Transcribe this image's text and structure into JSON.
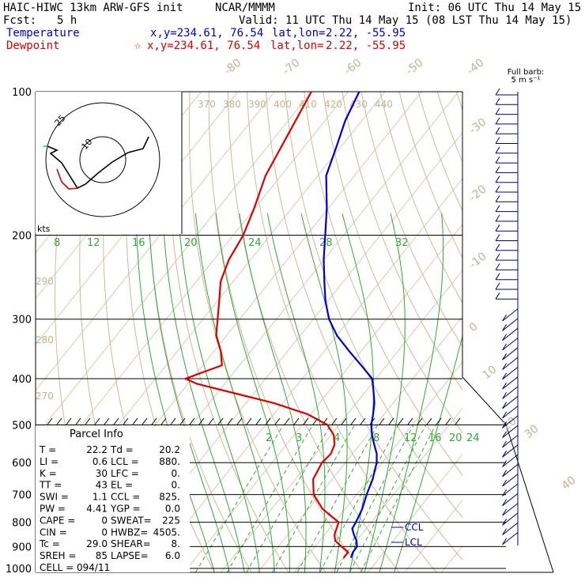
{
  "header": {
    "model": "HAIC-HIWC 13km ARW-GFS init",
    "org": "NCAR/MMMM",
    "init": "Init: 06 UTC Thu 14 May 15",
    "fcst_label": "Fcst:",
    "fcst_value": "5 h",
    "valid": "Valid: 11 UTC Thu 14 May 15 (08 LST Thu 14 May 15)",
    "temperature": {
      "label": "Temperature",
      "xy": "x,y=234.61, 76.54",
      "latlon_label": "lat,lon=",
      "latlon_value": "2.22, -55.95",
      "color": "#0000cc"
    },
    "dewpoint": {
      "label": "Dewpoint",
      "xy": "x,y=234.61, 76.54",
      "latlon_label": "lat,lon=",
      "latlon_value": "2.22, -55.95",
      "color": "#dd0000"
    }
  },
  "barb_key": {
    "line1": "Full barb:",
    "line2": "5 m s⁻¹"
  },
  "hodograph": {
    "units": "kts",
    "ring_labels": [
      "25",
      "10"
    ]
  },
  "parcel_info": {
    "title": "Parcel Info",
    "rows": [
      [
        "T  =",
        "22.2",
        "Td =",
        "20.2"
      ],
      [
        "LI =",
        "0.6",
        "LCL =",
        "880."
      ],
      [
        "K  =",
        "30",
        "LFC =",
        "0."
      ],
      [
        "TT =",
        "43",
        "EL  =",
        "0."
      ],
      [
        "SWI =",
        "1.1",
        "CCL =",
        "825."
      ],
      [
        "PW =",
        "4.41",
        "YGP =",
        "0.0"
      ],
      [
        "CAPE =",
        "0",
        "SWEAT=",
        "225"
      ],
      [
        "CIN =",
        "0",
        "HWBZ=",
        "4505."
      ],
      [
        "Tc =",
        "29.0",
        "SHEAR=",
        "8."
      ],
      [
        "SREH =",
        "85",
        "LAPSE=",
        "6.0"
      ]
    ],
    "cell": "CELL = 094/11"
  },
  "markers": {
    "ccl": "CCL",
    "lcl": "LCL"
  },
  "chart_data": {
    "type": "line",
    "title": "HAIC-HIWC 13km ARW-GFS init",
    "ylabel": "",
    "xlabel": "",
    "pressure_ticks": [
      100,
      200,
      300,
      400,
      500,
      600,
      700,
      800,
      900,
      1000
    ],
    "isotherm_labels": [
      "-80",
      "-70",
      "-60",
      "-50",
      "-40",
      "-30",
      "-20",
      "-10",
      "0",
      "10",
      "20",
      "30",
      "40"
    ],
    "theta_labels": [
      "370",
      "380",
      "390",
      "400",
      "410",
      "420",
      "430",
      "440"
    ],
    "theta_side_labels": [
      "290",
      "280",
      "270"
    ],
    "mixing_labels_top": [
      "8",
      "12",
      "16",
      "20",
      "24",
      "28",
      "32"
    ],
    "mixing_labels_mid": [
      "2",
      "3",
      "4",
      "8",
      "12",
      "16",
      "20",
      "24"
    ],
    "series": [
      {
        "name": "Temperature",
        "color": "#0000cc",
        "p": [
          100,
          115,
          130,
          150,
          175,
          200,
          225,
          250,
          275,
          300,
          325,
          350,
          375,
          400,
          425,
          450,
          475,
          500,
          525,
          550,
          575,
          600,
          650,
          700,
          750,
          800,
          825,
          850,
          875,
          900,
          925,
          950
        ],
        "t": [
          -77,
          -74.5,
          -71.3,
          -67.7,
          -60.6,
          -55,
          -50.1,
          -45.2,
          -40.6,
          -35.7,
          -29.9,
          -23.3,
          -16.9,
          -11,
          -7.9,
          -5.1,
          -3,
          -1.2,
          1.2,
          3.9,
          6.6,
          8.5,
          11,
          12.7,
          14.6,
          15.8,
          16.2,
          18,
          20,
          21.4,
          21.5,
          22.2
        ]
      },
      {
        "name": "Dewpoint",
        "color": "#dd0000",
        "p": [
          100,
          150,
          175,
          200,
          225,
          250,
          275,
          300,
          325,
          350,
          375,
          400,
          410,
          430,
          450,
          475,
          500,
          525,
          550,
          575,
          600,
          650,
          700,
          750,
          800,
          850,
          875,
          900,
          925,
          950
        ],
        "td": [
          -90,
          -84.2,
          -80.3,
          -77.3,
          -75.9,
          -73.4,
          -69.5,
          -66,
          -62.8,
          -58.2,
          -54.8,
          -61.8,
          -57.6,
          -44.7,
          -32.4,
          -20.8,
          -13.1,
          -9.2,
          -6.9,
          -5.9,
          -6.4,
          -5.2,
          -1.7,
          3.8,
          11.1,
          12.7,
          14.2,
          17.2,
          20.2,
          20.2
        ]
      }
    ]
  }
}
